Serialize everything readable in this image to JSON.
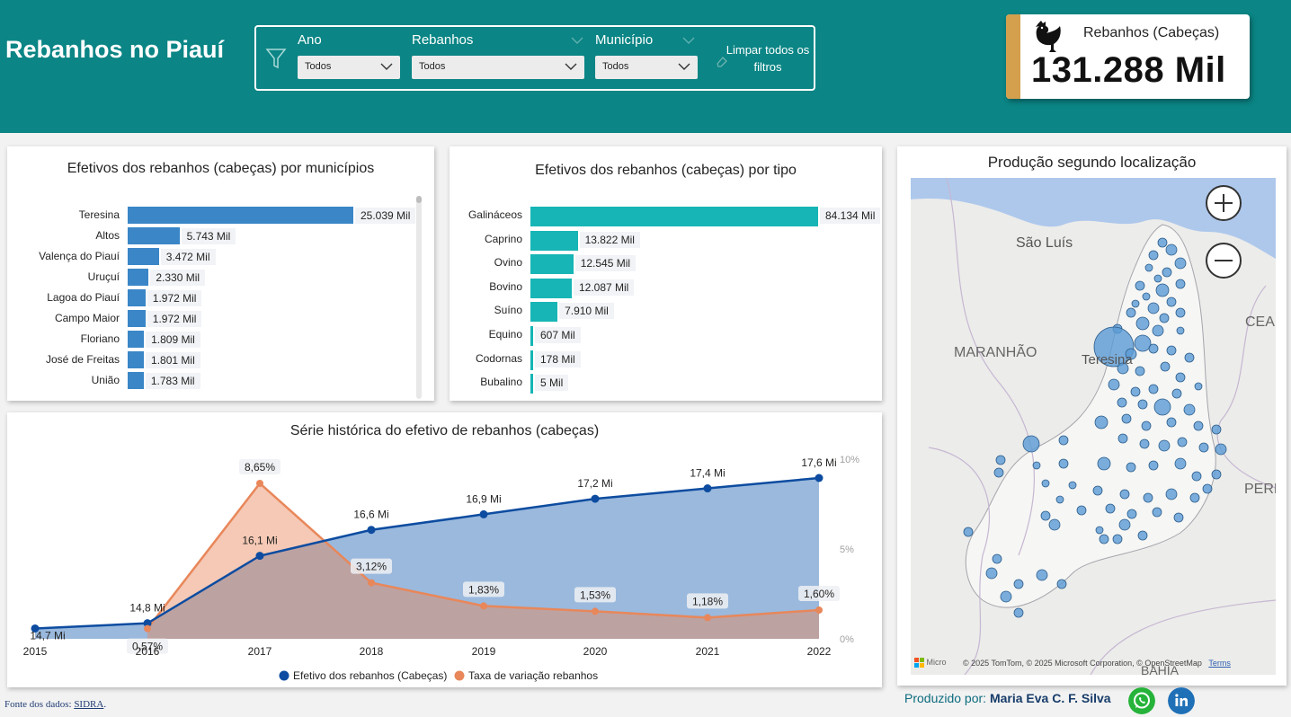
{
  "header": {
    "title": "Rebanhos no Piauí",
    "filters": [
      {
        "label": "Ano",
        "value": "Todos"
      },
      {
        "label": "Rebanhos",
        "value": "Todos"
      },
      {
        "label": "Município",
        "value": "Todos"
      }
    ],
    "clear_filters_label": "Limpar todos os filtros",
    "icons": {
      "filter": "funnel-icon",
      "clear": "eraser-icon",
      "dropdown": "chevron-down-icon"
    }
  },
  "kpi": {
    "label": "Rebanhos (Cabeças)",
    "value": "131.288 Mil",
    "icon": "chicken-icon",
    "accent": "#d4a04d"
  },
  "colors": {
    "header_bg": "#0b8585",
    "bar_municipio": "#3a86c7",
    "bar_tipo": "#17b5b5",
    "line_efetivo": "#0d4ca0",
    "line_taxa": "#e8875a"
  },
  "municipios_chart": {
    "title": "Efetivos dos rebanhos (cabeças) por municípios",
    "chart_data": {
      "type": "bar",
      "categories": [
        "Teresina",
        "Altos",
        "Valença do Piauí",
        "Uruçuí",
        "Lagoa do Piauí",
        "Campo Maior",
        "Floriano",
        "José de Freitas",
        "União"
      ],
      "values": [
        25039,
        5743,
        3472,
        2330,
        1972,
        1972,
        1809,
        1801,
        1783
      ],
      "labels": [
        "25.039 Mil",
        "5.743 Mil",
        "3.472 Mil",
        "2.330 Mil",
        "1.972 Mil",
        "1.972 Mil",
        "1.809 Mil",
        "1.801 Mil",
        "1.783 Mil"
      ],
      "orientation": "horizontal"
    }
  },
  "tipo_chart": {
    "title": "Efetivos dos rebanhos (cabeças) por tipo",
    "chart_data": {
      "type": "bar",
      "categories": [
        "Galináceos",
        "Caprino",
        "Ovino",
        "Bovino",
        "Suíno",
        "Equino",
        "Codornas",
        "Bubalino"
      ],
      "values": [
        84134,
        13822,
        12545,
        12087,
        7910,
        607,
        178,
        5
      ],
      "labels": [
        "84.134 Mil",
        "13.822 Mil",
        "12.545 Mil",
        "12.087 Mil",
        "7.910 Mil",
        "607 Mil",
        "178 Mil",
        "5 Mil"
      ],
      "orientation": "horizontal"
    }
  },
  "serie_chart": {
    "title": "Série histórica do efetivo de rebanhos (cabeças)",
    "chart_data": {
      "type": "area",
      "categories": [
        "2015",
        "2016",
        "2017",
        "2018",
        "2019",
        "2020",
        "2021",
        "2022"
      ],
      "series": [
        {
          "name": "Efetivo dos rebanhos (Cabeças)",
          "values": [
            14.7,
            14.8,
            16.1,
            16.6,
            16.9,
            17.2,
            17.4,
            17.6
          ],
          "labels": [
            "14,7 Mi",
            "14,8 Mi",
            "16,1 Mi",
            "16,6 Mi",
            "16,9 Mi",
            "17,2 Mi",
            "17,4 Mi",
            "17,6 Mi"
          ]
        },
        {
          "name": "Taxa de variação rebanhos",
          "values": [
            null,
            0.57,
            8.65,
            3.12,
            1.83,
            1.53,
            1.18,
            1.6
          ],
          "labels": [
            "",
            "0,57%",
            "8,65%",
            "3,12%",
            "1,83%",
            "1,53%",
            "1,18%",
            "1,60%"
          ]
        }
      ],
      "y2_ticks": [
        "10%",
        "5%",
        "0%"
      ],
      "y2lim": [
        0,
        10
      ],
      "legend": "bottom"
    }
  },
  "map": {
    "title": "Produção segundo localização",
    "labels": [
      "São Luís",
      "MARANHÃO",
      "Teresina",
      "CEA",
      "PERN",
      "BAHIA"
    ],
    "attribution": "© 2025 TomTom, © 2025 Microsoft Corporation, © OpenStreetMap",
    "attribution_link": "Terms",
    "logo_text": "Micro",
    "zoom_in": "+",
    "zoom_out": "−"
  },
  "footer": {
    "source_prefix": "Fonte dos dados: ",
    "source_link": "SIDRA",
    "source_suffix": ".",
    "credits_prefix": "Produzido por: ",
    "credits_name": "Maria Eva C. F. Silva",
    "icons": [
      "whatsapp-icon",
      "linkedin-icon"
    ]
  }
}
